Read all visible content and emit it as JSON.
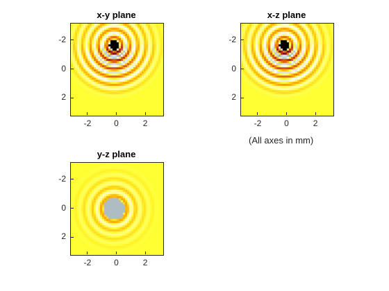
{
  "figure": {
    "note": "(All axes in mm)"
  },
  "chart_data": [
    {
      "type": "heatmap",
      "title": "x-y plane",
      "xlabel": "",
      "ylabel": "",
      "xlim": [
        -3.2,
        3.2
      ],
      "ylim": [
        -3.2,
        3.2
      ],
      "y_direction": "reversed",
      "xticks": [
        -2,
        0,
        2
      ],
      "yticks": [
        -2,
        0,
        2
      ],
      "pattern": "focused-waves",
      "focus": [
        -0.2,
        -1.7
      ],
      "colormap": [
        "#000000",
        "#b0192a",
        "#ff9a00",
        "#ffff33",
        "#ffffff",
        "#b8c7ce",
        "#50606a"
      ]
    },
    {
      "type": "heatmap",
      "title": "x-z plane",
      "xlabel": "",
      "ylabel": "",
      "xlim": [
        -3.2,
        3.2
      ],
      "ylim": [
        -3.2,
        3.2
      ],
      "y_direction": "reversed",
      "xticks": [
        -2,
        0,
        2
      ],
      "yticks": [
        -2,
        0,
        2
      ],
      "pattern": "focused-waves",
      "focus": [
        -0.2,
        -1.7
      ],
      "colormap": [
        "#000000",
        "#b0192a",
        "#ff9a00",
        "#ffff33",
        "#ffffff",
        "#b8c7ce",
        "#50606a"
      ]
    },
    {
      "type": "heatmap",
      "title": "y-z plane",
      "xlabel": "",
      "ylabel": "",
      "xlim": [
        -3.2,
        3.2
      ],
      "ylim": [
        -3.2,
        3.2
      ],
      "y_direction": "reversed",
      "xticks": [
        -2,
        0,
        2
      ],
      "yticks": [
        -2,
        0,
        2
      ],
      "pattern": "radial-rings",
      "focus": [
        -0.2,
        0
      ],
      "colormap": [
        "#000000",
        "#b0192a",
        "#ff9a00",
        "#ffff33",
        "#ffffff",
        "#b8c7ce",
        "#50606a"
      ]
    }
  ]
}
